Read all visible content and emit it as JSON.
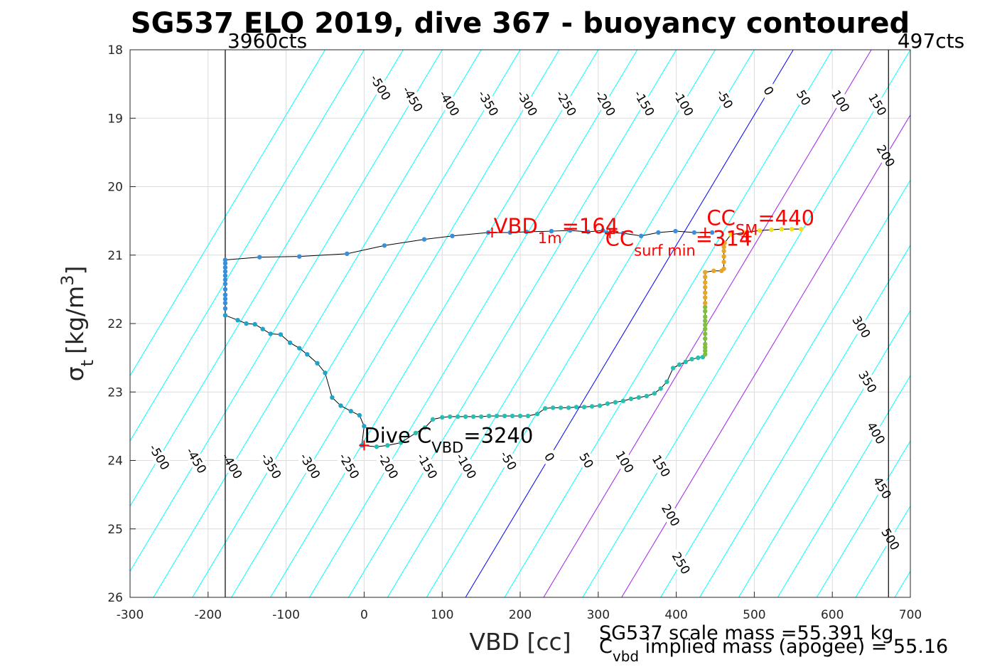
{
  "chart_data": {
    "type": "scatter",
    "title": "SG537 ELO 2019, dive 367 - buoyancy contoured",
    "xlabel": "VBD [cc]",
    "ylabel": {
      "sym": "σ",
      "sub": "t",
      "unit_pre": "[kg/m",
      "unit_sup": "3",
      "unit_post": "]"
    },
    "xlim": [
      -300,
      700
    ],
    "ylim": [
      18,
      26
    ],
    "y_reversed": true,
    "grid": true,
    "xticks": [
      "-300",
      "-200",
      "-100",
      "0",
      "100",
      "200",
      "300",
      "400",
      "500",
      "600",
      "700"
    ],
    "yticks": [
      "18",
      "19",
      "20",
      "21",
      "22",
      "23",
      "24",
      "25",
      "26"
    ],
    "contours": {
      "levels": [
        -600,
        -550,
        -500,
        -450,
        -400,
        -350,
        -300,
        -250,
        -200,
        -150,
        -100,
        -50,
        0,
        50,
        100,
        150,
        200,
        250,
        300,
        350,
        400,
        450,
        500,
        550,
        600,
        650
      ],
      "zero_at_sigma18": 550,
      "zero_at_sigma26": 130,
      "colors": {
        "positive_neg": "#00ffff",
        "zero": "#0000ff",
        "special": "#a020f0"
      },
      "special_levels": [
        100,
        200
      ],
      "labels_top": [
        {
          "text": "-500",
          "level": -500,
          "y": 18.55
        },
        {
          "text": "-450",
          "level": -450,
          "y": 18.72
        },
        {
          "text": "-400",
          "level": -400,
          "y": 18.78
        },
        {
          "text": "-350",
          "level": -350,
          "y": 18.78
        },
        {
          "text": "-300",
          "level": -300,
          "y": 18.78
        },
        {
          "text": "-250",
          "level": -250,
          "y": 18.78
        },
        {
          "text": "-200",
          "level": -200,
          "y": 18.78
        },
        {
          "text": "-150",
          "level": -150,
          "y": 18.78
        },
        {
          "text": "-100",
          "level": -100,
          "y": 18.78
        },
        {
          "text": "-50",
          "level": -50,
          "y": 18.72
        },
        {
          "text": "0",
          "level": 0,
          "y": 18.6
        },
        {
          "text": "50",
          "level": 50,
          "y": 18.7
        },
        {
          "text": "100",
          "level": 100,
          "y": 18.75
        },
        {
          "text": "150",
          "level": 150,
          "y": 18.8
        },
        {
          "text": "200",
          "level": 200,
          "y": 19.55
        },
        {
          "text": "300",
          "level": 300,
          "y": 22.05
        },
        {
          "text": "350",
          "level": 350,
          "y": 22.85
        },
        {
          "text": "400",
          "level": 400,
          "y": 23.6
        },
        {
          "text": "450",
          "level": 450,
          "y": 24.4
        },
        {
          "text": "500",
          "level": 500,
          "y": 25.15
        }
      ],
      "labels_bottom": [
        {
          "text": "-500",
          "level": -500,
          "y": 23.95
        },
        {
          "text": "-450",
          "level": -450,
          "y": 24.0
        },
        {
          "text": "-400",
          "level": -400,
          "y": 24.08
        },
        {
          "text": "-350",
          "level": -350,
          "y": 24.08
        },
        {
          "text": "-300",
          "level": -300,
          "y": 24.08
        },
        {
          "text": "-250",
          "level": -250,
          "y": 24.08
        },
        {
          "text": "-200",
          "level": -200,
          "y": 24.08
        },
        {
          "text": "-150",
          "level": -150,
          "y": 24.08
        },
        {
          "text": "-100",
          "level": -100,
          "y": 24.08
        },
        {
          "text": "-50",
          "level": -50,
          "y": 24.0
        },
        {
          "text": "0",
          "level": 0,
          "y": 23.95
        },
        {
          "text": "50",
          "level": 50,
          "y": 24.0
        },
        {
          "text": "100",
          "level": 100,
          "y": 24.02
        },
        {
          "text": "150",
          "level": 150,
          "y": 24.08
        },
        {
          "text": "200",
          "level": 200,
          "y": 24.8
        },
        {
          "text": "250",
          "level": 250,
          "y": 25.5
        }
      ]
    },
    "vlines": [
      {
        "x": -178,
        "label": "3960cts",
        "anchor": "start"
      },
      {
        "x": 672,
        "label": "497cts",
        "anchor": "end"
      }
    ],
    "series": [
      {
        "name": "climb",
        "color": "#3a8fd9",
        "points": [
          [
            -178,
            21.07
          ],
          [
            -134,
            21.03
          ],
          [
            -83,
            21.02
          ],
          [
            -22,
            20.98
          ],
          [
            26,
            20.86
          ],
          [
            77,
            20.77
          ],
          [
            113,
            20.72
          ],
          [
            159,
            20.67
          ],
          [
            187,
            20.67
          ],
          [
            208,
            20.66
          ],
          [
            240,
            20.65
          ],
          [
            264,
            20.64
          ],
          [
            287,
            20.66
          ],
          [
            306,
            20.64
          ],
          [
            311,
            20.67
          ],
          [
            332,
            20.68
          ],
          [
            355,
            20.72
          ],
          [
            377,
            20.67
          ],
          [
            399,
            20.65
          ],
          [
            423,
            20.67
          ],
          [
            446,
            20.67
          ]
        ]
      },
      {
        "name": "descent_upper",
        "color": "#1fa3c9",
        "points": [
          [
            -178,
            21.88
          ],
          [
            -162,
            21.95
          ],
          [
            -151,
            22.0
          ],
          [
            -140,
            22.01
          ],
          [
            -130,
            22.08
          ],
          [
            -120,
            22.15
          ],
          [
            -107,
            22.16
          ],
          [
            -95,
            22.28
          ],
          [
            -83,
            22.36
          ],
          [
            -73,
            22.45
          ],
          [
            -60,
            22.58
          ],
          [
            -50,
            22.72
          ],
          [
            -41,
            23.08
          ],
          [
            -30,
            23.2
          ],
          [
            -17,
            23.28
          ],
          [
            -6,
            23.34
          ],
          [
            0,
            23.5
          ],
          [
            -3,
            23.78
          ]
        ]
      },
      {
        "name": "descent_lower",
        "color": "#26bfb0",
        "points": [
          [
            16,
            23.8
          ],
          [
            30,
            23.78
          ],
          [
            47,
            23.74
          ],
          [
            66,
            23.6
          ],
          [
            78,
            23.52
          ],
          [
            88,
            23.4
          ],
          [
            100,
            23.37
          ],
          [
            110,
            23.36
          ],
          [
            120,
            23.36
          ],
          [
            130,
            23.36
          ],
          [
            140,
            23.36
          ],
          [
            150,
            23.36
          ],
          [
            160,
            23.35
          ],
          [
            170,
            23.35
          ],
          [
            180,
            23.35
          ],
          [
            190,
            23.35
          ],
          [
            200,
            23.35
          ],
          [
            210,
            23.35
          ],
          [
            222,
            23.32
          ],
          [
            232,
            23.24
          ],
          [
            242,
            23.23
          ],
          [
            252,
            23.23
          ],
          [
            262,
            23.23
          ],
          [
            272,
            23.22
          ],
          [
            282,
            23.22
          ],
          [
            292,
            23.21
          ],
          [
            302,
            23.2
          ],
          [
            312,
            23.17
          ],
          [
            322,
            23.15
          ],
          [
            332,
            23.13
          ],
          [
            342,
            23.1
          ],
          [
            352,
            23.08
          ],
          [
            362,
            23.06
          ],
          [
            372,
            23.02
          ],
          [
            380,
            22.95
          ],
          [
            388,
            22.85
          ],
          [
            396,
            22.65
          ],
          [
            404,
            22.6
          ],
          [
            412,
            22.56
          ],
          [
            420,
            22.52
          ],
          [
            428,
            22.5
          ],
          [
            434,
            22.49
          ]
        ]
      },
      {
        "name": "bottom_green",
        "color": "#7fbf3f",
        "points": [
          [
            437,
            22.45
          ],
          [
            437,
            22.4
          ],
          [
            437,
            22.35
          ],
          [
            437,
            22.3
          ],
          [
            437,
            22.22
          ],
          [
            437,
            22.15
          ],
          [
            437,
            22.08
          ],
          [
            437,
            22.02
          ],
          [
            437,
            21.96
          ],
          [
            437,
            21.9
          ],
          [
            437,
            21.82
          ],
          [
            437,
            21.76
          ]
        ]
      },
      {
        "name": "bottom_orange",
        "color": "#e8a628",
        "points": [
          [
            437,
            21.7
          ],
          [
            437,
            21.62
          ],
          [
            437,
            21.55
          ],
          [
            437,
            21.47
          ],
          [
            437,
            21.4
          ],
          [
            437,
            21.32
          ],
          [
            437,
            21.25
          ],
          [
            448,
            21.23
          ],
          [
            458,
            21.23
          ],
          [
            461,
            21.2
          ],
          [
            461,
            21.1
          ],
          [
            461,
            21.02
          ],
          [
            461,
            20.94
          ],
          [
            461,
            20.88
          ],
          [
            462,
            20.82
          ]
        ]
      },
      {
        "name": "bottom_yellow",
        "color": "#f0e020",
        "points": [
          [
            470,
            20.7
          ],
          [
            488,
            20.67
          ],
          [
            507,
            20.64
          ],
          [
            522,
            20.63
          ],
          [
            535,
            20.62
          ],
          [
            548,
            20.62
          ],
          [
            560,
            20.62
          ]
        ]
      }
    ],
    "markers": [
      {
        "x": 164,
        "y": 20.67,
        "color": "#ff0000",
        "symbol": "+"
      },
      {
        "x": 0,
        "y": 23.78,
        "color": "#ff0000",
        "symbol": "+"
      },
      {
        "x": 315,
        "y": 20.68,
        "color": "#ff0000",
        "symbol": "+"
      },
      {
        "x": 437,
        "y": 20.67,
        "color": "#ff0000",
        "symbol": "+"
      },
      {
        "x": 490,
        "y": 20.73,
        "color": "#ff0000",
        "symbol": "+"
      }
    ],
    "annotations": {
      "vbd1m": {
        "main": "VBD",
        "sub": "1m",
        "post": "=164",
        "x": 166,
        "y": 20.68
      },
      "ccsm": {
        "main": "CC",
        "sub": "SM",
        "post": "=440",
        "x": 439,
        "y": 20.56
      },
      "ccsurf": {
        "main": "CC",
        "sub": "surf min",
        "post": "=314",
        "x": 309,
        "y": 20.86
      },
      "dive": {
        "main": "Dive C",
        "sub": "VBD",
        "post": "=3240",
        "x": 0,
        "y": 23.74
      }
    },
    "footer": {
      "line1": "SG537 scale mass =55.391 kg",
      "line2_main": "C",
      "line2_sub": "vbd",
      "line2_post": " implied mass (apogee) = 55.16"
    }
  }
}
